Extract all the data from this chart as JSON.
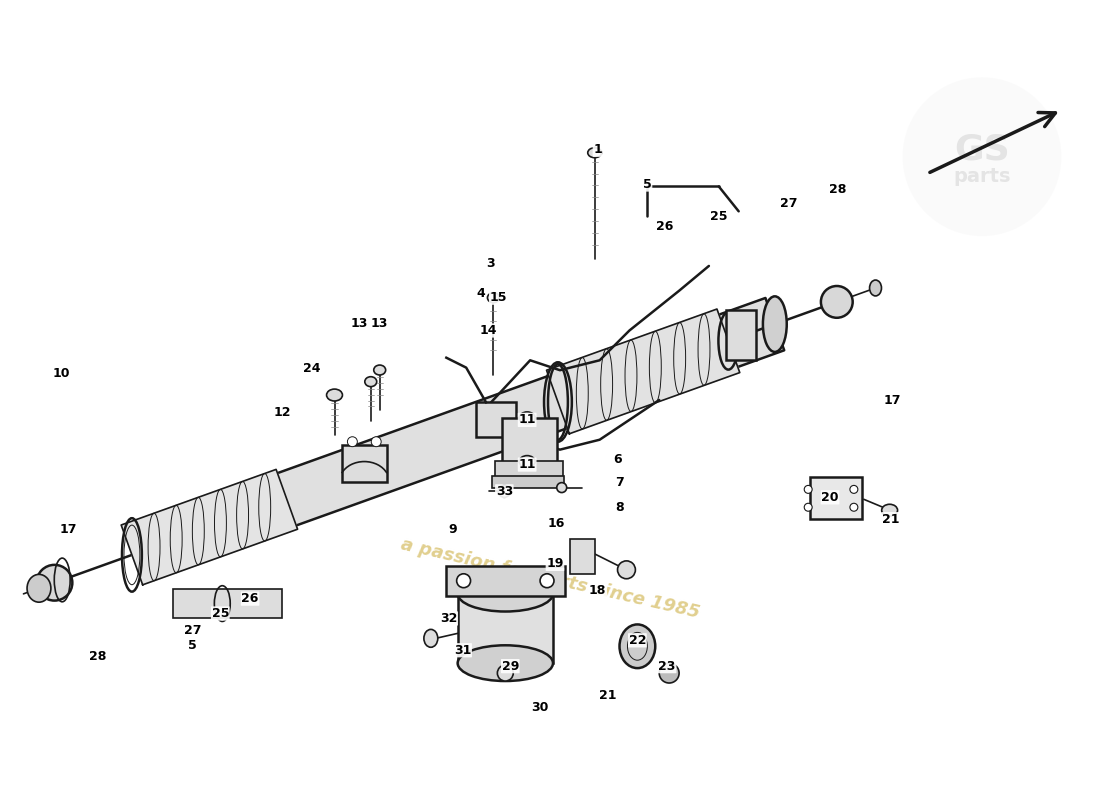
{
  "bg_color": "#ffffff",
  "line_color": "#1a1a1a",
  "watermark_color": "#c8a832",
  "watermark_text": "a passion for parts since 1985",
  "figsize": [
    11.0,
    8.0
  ],
  "dpi": 100,
  "labels": [
    [
      "1",
      598,
      148
    ],
    [
      "3",
      490,
      263
    ],
    [
      "4",
      480,
      293
    ],
    [
      "5",
      648,
      183
    ],
    [
      "5",
      190,
      647
    ],
    [
      "6",
      618,
      460
    ],
    [
      "7",
      620,
      483
    ],
    [
      "8",
      620,
      508
    ],
    [
      "9",
      452,
      530
    ],
    [
      "10",
      58,
      373
    ],
    [
      "11",
      527,
      420
    ],
    [
      "11",
      527,
      465
    ],
    [
      "12",
      280,
      413
    ],
    [
      "13",
      358,
      323
    ],
    [
      "13",
      378,
      323
    ],
    [
      "14",
      488,
      330
    ],
    [
      "15",
      498,
      297
    ],
    [
      "16",
      556,
      524
    ],
    [
      "17",
      895,
      400
    ],
    [
      "17",
      65,
      530
    ],
    [
      "18",
      598,
      592
    ],
    [
      "19",
      555,
      565
    ],
    [
      "20",
      832,
      498
    ],
    [
      "21",
      893,
      520
    ],
    [
      "21",
      608,
      698
    ],
    [
      "22",
      638,
      642
    ],
    [
      "23",
      668,
      668
    ],
    [
      "24",
      310,
      368
    ],
    [
      "25",
      720,
      215
    ],
    [
      "25",
      218,
      615
    ],
    [
      "26",
      665,
      225
    ],
    [
      "26",
      248,
      600
    ],
    [
      "27",
      790,
      202
    ],
    [
      "27",
      190,
      632
    ],
    [
      "28",
      840,
      188
    ],
    [
      "28",
      95,
      658
    ],
    [
      "29",
      510,
      668
    ],
    [
      "30",
      540,
      710
    ],
    [
      "31",
      462,
      652
    ],
    [
      "32",
      448,
      620
    ],
    [
      "33",
      504,
      492
    ]
  ]
}
